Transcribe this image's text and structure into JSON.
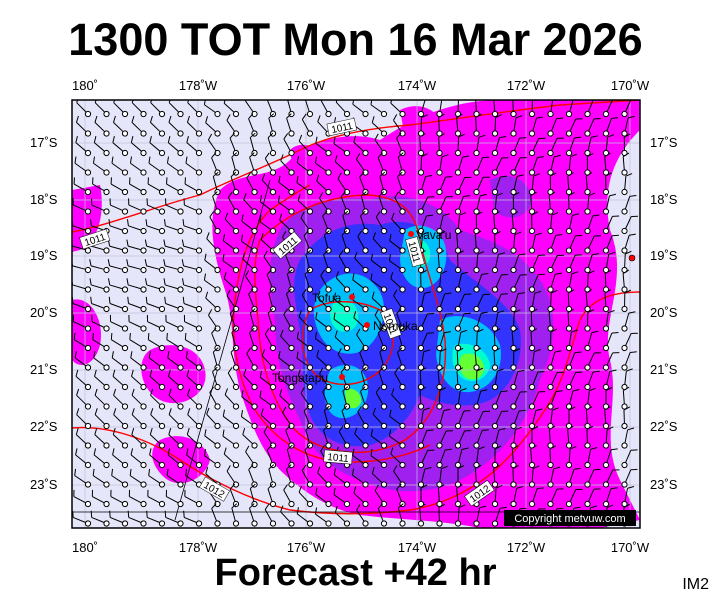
{
  "title": "1300 TOT Mon 16 Mar 2026",
  "footer": "Forecast +42 hr",
  "image_id": "IM2",
  "copyright": "Copyright metvuw.com",
  "axes": {
    "top_lon": [
      "180˚",
      "178˚W",
      "176˚W",
      "174˚W",
      "172˚W",
      "170˚W"
    ],
    "bottom_lon": [
      "180˚",
      "178˚W",
      "176˚W",
      "174˚W",
      "172˚W",
      "170˚W"
    ],
    "left_lat": [
      "17˚S",
      "18˚S",
      "19˚S",
      "20˚S",
      "21˚S",
      "22˚S",
      "23˚S"
    ],
    "right_lat": [
      "17˚S",
      "18˚S",
      "19˚S",
      "20˚S",
      "21˚S",
      "22˚S",
      "23˚S"
    ]
  },
  "places": [
    {
      "name": "Vava'u"
    },
    {
      "name": "Tofua"
    },
    {
      "name": "Nomuka"
    },
    {
      "name": "Tongatapu"
    }
  ],
  "isobars": [
    "1011",
    "1011",
    "1011",
    "1011",
    "1011",
    "1011",
    "1012",
    "1012"
  ],
  "colors": {
    "background_fill": "#e6e6fa",
    "rain_light": "#ff00ff",
    "rain_mid": "#a020f0",
    "rain_heavy": "#3333ff",
    "rain_heavier": "#00bfff",
    "rain_strong": "#00ffcc",
    "rain_peak": "#66ff33",
    "isobar": "#ff0000"
  }
}
